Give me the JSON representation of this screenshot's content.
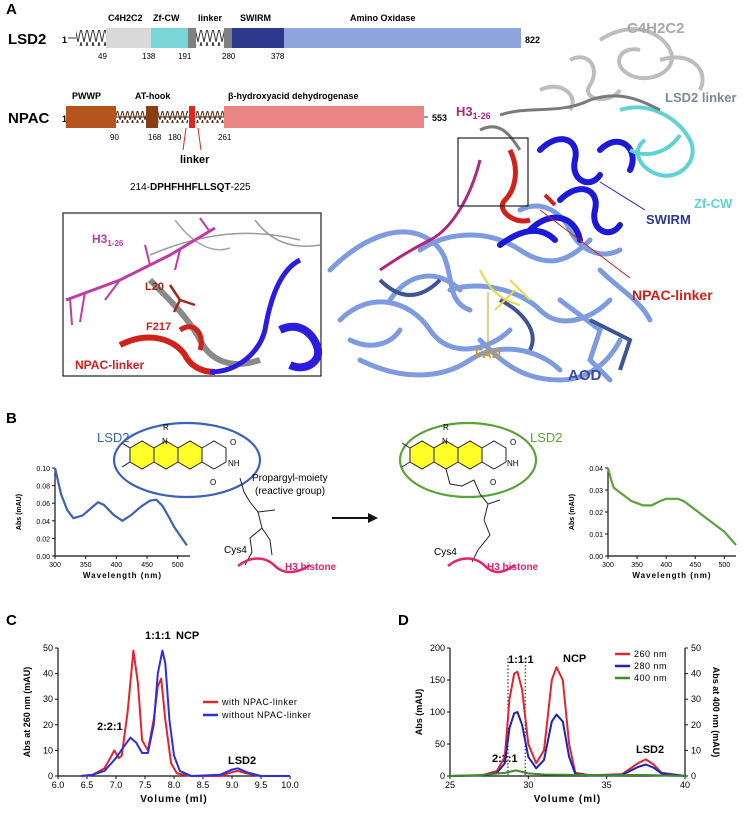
{
  "panelA": {
    "label": "A",
    "lsd2": {
      "name": "LSD2",
      "start": "1",
      "end": "822",
      "domains": [
        "C4H2C2",
        "Zf-CW",
        "linker",
        "SWIRM",
        "Amino Oxidase"
      ],
      "ticks": [
        "49",
        "138",
        "191",
        "280",
        "378"
      ]
    },
    "npac": {
      "name": "NPAC",
      "start": "1",
      "end": "553",
      "domains": [
        "PWWP",
        "AT-hook",
        "β-hydroxyacid dehydrogenase"
      ],
      "ticks": [
        "90",
        "168",
        "180",
        "261"
      ],
      "linker_label": "linker",
      "seq_prefix": "214-",
      "seq_bold": "DPHFHHFLLSQT",
      "seq_suffix": "-225"
    },
    "inset": {
      "h3_main": "H3",
      "h3_sub": "1-26",
      "l20": "L20",
      "f217": "F217",
      "npac_linker": "NPAC-linker"
    },
    "structure": {
      "c4h2c2": "C4H2C2",
      "lsd2_linker": "LSD2 linker",
      "zfcw": "Zf-CW",
      "swirm": "SWIRM",
      "npac_linker": "NPAC-linker",
      "fad": "FAD",
      "aod": "AOD",
      "h3_main": "H3",
      "h3_sub": "1-26"
    },
    "colors": {
      "c4h2c2": "#d9d9d9",
      "zfcw": "#7ad6d6",
      "linker": "#808080",
      "swirm": "#2d3a8c",
      "aod": "#8fa3dd",
      "pwwp": "#b5541d",
      "athook": "#8a3d12",
      "npac_linker": "#e0281e",
      "bhd": "#eb8585",
      "h3": "#b0257f",
      "fad": "#c79a2c"
    }
  },
  "panelB": {
    "label": "B",
    "lsd2_left": "LSD2",
    "lsd2_right": "LSD2",
    "propargyl": "Propargyl-moiety",
    "reactive": "(reactive group)",
    "cys4_left": "Cys4",
    "cys4_right": "Cys4",
    "h3_left": "H3 histone",
    "h3_right": "H3 histone",
    "ring_atoms": {
      "n": "N",
      "nh": "NH",
      "r": "R",
      "o": "O"
    }
  },
  "panelC": {
    "label": "C",
    "peaks": {
      "p221": "2:2:1",
      "p111": "1:1:1",
      "ncp": "NCP",
      "lsd2": "LSD2"
    }
  },
  "panelD": {
    "label": "D",
    "peaks": {
      "p221": "2:2:1",
      "p111": "1:1:1",
      "ncp": "NCP",
      "lsd2": "LSD2"
    }
  },
  "chart_data": [
    {
      "type": "line",
      "id": "B-left",
      "xlabel": "Wavelength (nm)",
      "ylabel": "Abs (mAU)",
      "xlim": [
        300,
        520
      ],
      "ylim": [
        0,
        0.1
      ],
      "xticks": [
        300,
        350,
        400,
        450,
        500
      ],
      "yticks": [
        "0.00",
        "0.02",
        "0.04",
        "0.06",
        "0.08",
        "0.10"
      ],
      "color": "#3a62b8",
      "series": [
        {
          "x": [
            300,
            305,
            310,
            320,
            330,
            345,
            360,
            370,
            380,
            395,
            410,
            425,
            440,
            455,
            465,
            475,
            485,
            495,
            505,
            515
          ],
          "y": [
            0.1,
            0.085,
            0.07,
            0.052,
            0.043,
            0.046,
            0.055,
            0.061,
            0.058,
            0.047,
            0.04,
            0.047,
            0.056,
            0.063,
            0.064,
            0.057,
            0.045,
            0.032,
            0.022,
            0.012
          ]
        }
      ]
    },
    {
      "type": "line",
      "id": "B-right",
      "xlabel": "Wavelength (nm)",
      "ylabel": "Abs (mAU)",
      "xlim": [
        300,
        520
      ],
      "ylim": [
        0,
        0.04
      ],
      "xticks": [
        300,
        350,
        400,
        450,
        500
      ],
      "yticks": [
        "0.00",
        "0.01",
        "0.02",
        "0.03",
        "0.04"
      ],
      "color": "#5aa33a",
      "series": [
        {
          "x": [
            300,
            305,
            310,
            320,
            330,
            340,
            350,
            360,
            375,
            390,
            400,
            410,
            420,
            430,
            440,
            450,
            460,
            470,
            480,
            490,
            500,
            510,
            520
          ],
          "y": [
            0.04,
            0.035,
            0.031,
            0.029,
            0.027,
            0.025,
            0.024,
            0.023,
            0.023,
            0.025,
            0.026,
            0.026,
            0.026,
            0.025,
            0.023,
            0.021,
            0.019,
            0.017,
            0.015,
            0.013,
            0.011,
            0.008,
            0.005
          ]
        }
      ]
    },
    {
      "type": "line",
      "id": "C",
      "xlabel": "Volume (ml)",
      "ylabel": "Abs at 260 nm (mAU)",
      "xlim": [
        6.0,
        10.0
      ],
      "ylim": [
        0,
        50
      ],
      "xticks": [
        "6.0",
        "6.5",
        "7.0",
        "7.5",
        "8.0",
        "8.5",
        "9.0",
        "9.5",
        "10.0"
      ],
      "yticks": [
        0,
        10,
        20,
        30,
        40,
        50
      ],
      "series": [
        {
          "name": "with NPAC-linker",
          "color": "#e0262b",
          "x": [
            6.4,
            6.6,
            6.8,
            6.9,
            6.97,
            7.05,
            7.1,
            7.2,
            7.3,
            7.38,
            7.45,
            7.55,
            7.65,
            7.72,
            7.78,
            7.85,
            7.95,
            8.05,
            8.3,
            8.8,
            9.0,
            9.1,
            9.25,
            9.5,
            10.0
          ],
          "y": [
            0,
            0.5,
            3,
            7,
            10,
            7,
            8,
            25,
            49,
            36,
            14,
            10,
            22,
            35,
            38,
            22,
            5,
            1,
            0,
            0,
            1.5,
            2,
            1,
            0,
            0
          ]
        },
        {
          "name": "without NPAC-linker",
          "color": "#2e2ee0",
          "x": [
            6.4,
            6.6,
            6.8,
            7.0,
            7.15,
            7.25,
            7.35,
            7.45,
            7.55,
            7.65,
            7.72,
            7.8,
            7.85,
            7.92,
            8.0,
            8.1,
            8.3,
            8.8,
            9.0,
            9.1,
            9.25,
            9.5,
            10.0
          ],
          "y": [
            0,
            0.5,
            2,
            7,
            12,
            15,
            13,
            9,
            9,
            20,
            40,
            49,
            44,
            22,
            8,
            2,
            0,
            0.5,
            2.5,
            3,
            1.5,
            0,
            0
          ]
        }
      ]
    },
    {
      "type": "line",
      "id": "D",
      "xlabel": "Volume (ml)",
      "ylabel": "Abs (mAU)",
      "y2label": "Abs at 400 nm (mAU)",
      "xlim": [
        25,
        40
      ],
      "ylim": [
        0,
        200
      ],
      "y2lim": [
        0,
        50
      ],
      "xticks": [
        25,
        30,
        35,
        40
      ],
      "yticks": [
        0,
        50,
        100,
        150,
        200
      ],
      "y2ticks": [
        0,
        10,
        20,
        30,
        40,
        50
      ],
      "dotted_lines_x": [
        28.7,
        29.8
      ],
      "series": [
        {
          "name": "260 nm",
          "color": "#e0262b",
          "x": [
            25,
            27,
            28,
            28.5,
            28.8,
            29.1,
            29.3,
            29.6,
            30,
            30.5,
            31,
            31.5,
            31.8,
            32.2,
            32.6,
            33,
            34,
            36,
            37,
            37.5,
            38,
            38.5,
            40
          ],
          "y": [
            0,
            1,
            8,
            30,
            120,
            160,
            163,
            135,
            50,
            20,
            40,
            150,
            170,
            150,
            50,
            5,
            1,
            3,
            20,
            26,
            18,
            5,
            0
          ]
        },
        {
          "name": "280 nm",
          "color": "#2020c0",
          "x": [
            25,
            27,
            28,
            28.5,
            28.8,
            29.1,
            29.3,
            29.6,
            30,
            30.5,
            31,
            31.5,
            31.8,
            32.2,
            32.6,
            33,
            34,
            36,
            37,
            37.5,
            38,
            38.5,
            40
          ],
          "y": [
            0,
            1,
            5,
            20,
            75,
            98,
            100,
            80,
            30,
            12,
            25,
            85,
            96,
            85,
            30,
            3,
            1,
            2,
            14,
            18,
            13,
            4,
            0
          ]
        },
        {
          "name": "400 nm",
          "color": "#3c8c2a",
          "axis": "right",
          "x": [
            25,
            27,
            28.5,
            29.2,
            30,
            31,
            32,
            35,
            37.5,
            40
          ],
          "y": [
            0,
            0.4,
            1.2,
            2.2,
            1,
            0.6,
            0.5,
            0.3,
            0.4,
            0
          ]
        }
      ]
    }
  ]
}
